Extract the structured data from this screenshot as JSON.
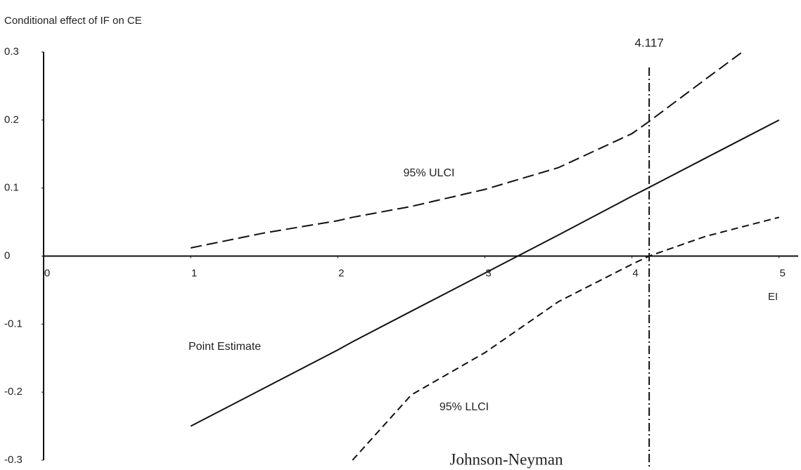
{
  "chart_data": {
    "type": "line",
    "y_label": "Conditional effect of IF on CE",
    "x_label": "EI",
    "x": [
      1,
      1.5,
      2,
      2.1,
      2.5,
      3,
      3.5,
      4,
      4.117,
      4.5,
      4.75,
      5
    ],
    "series": [
      {
        "name": "Point Estimate",
        "color": "#111111",
        "line_style": "solid",
        "values": [
          -0.25,
          -0.194,
          -0.138,
          -0.126,
          -0.081,
          -0.025,
          0.031,
          0.088,
          0.101,
          0.144,
          0.172,
          0.2
        ]
      },
      {
        "name": "95% ULCI",
        "color": "#111111",
        "line_style": "long-dash",
        "values": [
          0.012,
          0.034,
          0.052,
          0.057,
          0.073,
          0.098,
          0.13,
          0.18,
          0.198,
          0.26,
          0.3,
          null
        ]
      },
      {
        "name": "95% LLCI",
        "color": "#111111",
        "line_style": "dash",
        "values": [
          null,
          null,
          null,
          -0.3,
          -0.204,
          -0.142,
          -0.067,
          -0.012,
          0,
          0.029,
          0.043,
          0.057
        ]
      }
    ],
    "jn_point": 4.117,
    "jn_label": "Johnson-Neyman",
    "xlim": [
      0,
      5.13
    ],
    "xticks": [
      0,
      1,
      2,
      3,
      4,
      5
    ],
    "ylim": [
      -0.3,
      0.3
    ],
    "yticks": [
      0.3,
      0.2,
      0.1,
      0,
      -0.1,
      -0.2,
      -0.3
    ],
    "grid": false
  }
}
